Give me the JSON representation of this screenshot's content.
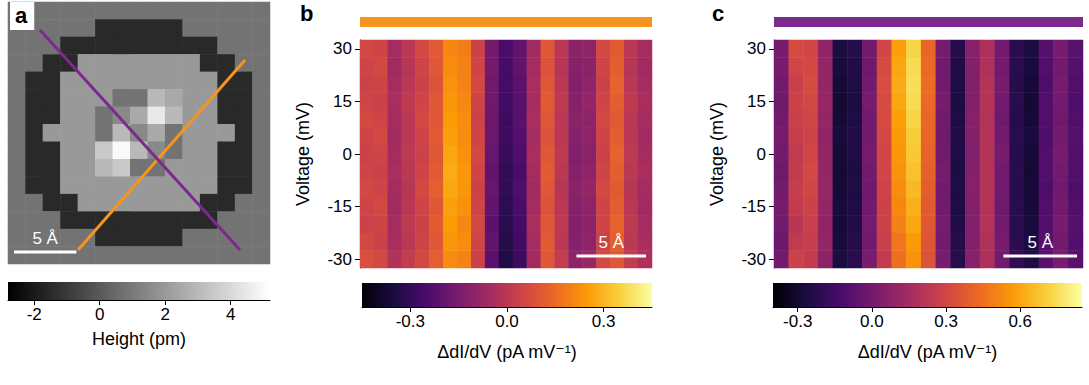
{
  "chart_data": [
    {
      "type": "heatmap",
      "panel_label": "a",
      "color": "gray",
      "tick_labels": false,
      "xlim": [
        0,
        21
      ],
      "scale_bar": {
        "length": 5,
        "label": "5 Å"
      },
      "colorbar": {
        "title": "Height (pm)",
        "range": [
          -2.8,
          5.2
        ],
        "ticks": [
          -2,
          0,
          2,
          4
        ]
      },
      "cells": [
        [
          0.8,
          0.8,
          0.8,
          0.8,
          0.8,
          0.8,
          0.8,
          0.8,
          0.8,
          0.8,
          0.8,
          0.8,
          0.8,
          0.8,
          0.8
        ],
        [
          0.8,
          0.8,
          0.8,
          0.8,
          0.8,
          -1.5,
          -1.5,
          -1.5,
          -1.5,
          -1.5,
          0.8,
          0.8,
          0.8,
          0.8,
          0.8
        ],
        [
          0.8,
          0.8,
          0.8,
          -1.5,
          -1.5,
          -1.5,
          -1.5,
          -1.5,
          -1.5,
          -1.5,
          -1.5,
          -1.5,
          0.8,
          0.8,
          0.8
        ],
        [
          0.8,
          0.8,
          -1.5,
          -1.5,
          2,
          2,
          2,
          2,
          2,
          2,
          2,
          -1.5,
          -1.5,
          0.8,
          0.8
        ],
        [
          0.8,
          -1.5,
          -1.5,
          2,
          2,
          2,
          2,
          2,
          2,
          2,
          2,
          2,
          -1.5,
          -1.5,
          0.8
        ],
        [
          0.8,
          -1.5,
          -1.5,
          2,
          2,
          2,
          0.8,
          0.8,
          3,
          2.5,
          2,
          2,
          -1.5,
          -1.5,
          0.8
        ],
        [
          0.8,
          -1.5,
          -1.5,
          2,
          2,
          0.8,
          1.5,
          2.5,
          4.5,
          3,
          2,
          2,
          -1.5,
          -1.5,
          0.8
        ],
        [
          0.8,
          -1.5,
          2,
          2,
          2,
          0.8,
          3,
          1.5,
          2.5,
          0.8,
          2,
          2,
          2,
          -1.5,
          0.8
        ],
        [
          0.8,
          -1.5,
          -1.5,
          2,
          2,
          3.5,
          5,
          3,
          1.5,
          0.8,
          2,
          2,
          -1.5,
          -1.5,
          0.8
        ],
        [
          0.8,
          -1.5,
          -1.5,
          2,
          2,
          3,
          3.5,
          0.8,
          0.8,
          2,
          2,
          2,
          -1.5,
          -1.5,
          0.8
        ],
        [
          0.8,
          -1.5,
          -1.5,
          2,
          2,
          2,
          2,
          2,
          2,
          2,
          2,
          2,
          -1.5,
          -1.5,
          0.8
        ],
        [
          0.8,
          0.8,
          -1.5,
          -1.5,
          2,
          2,
          2,
          2,
          2,
          2,
          2,
          -1.5,
          -1.5,
          0.8,
          0.8
        ],
        [
          0.8,
          0.8,
          0.8,
          -1.5,
          -1.5,
          -1.5,
          -1.5,
          -1.5,
          -1.5,
          -1.5,
          -1.5,
          -1.5,
          0.8,
          0.8,
          0.8
        ],
        [
          0.8,
          0.8,
          0.8,
          0.8,
          0.8,
          -1.5,
          -1.5,
          -1.5,
          -1.5,
          -1.5,
          0.8,
          0.8,
          0.8,
          0.8,
          0.8
        ],
        [
          0.8,
          0.8,
          0.8,
          0.8,
          0.8,
          0.8,
          0.8,
          0.8,
          0.8,
          0.8,
          0.8,
          0.8,
          0.8,
          0.8,
          0.8
        ]
      ]
    },
    {
      "type": "heatmap",
      "panel_label": "b",
      "color": "inferno",
      "tick_labels": "y",
      "x": [
        0,
        1,
        2,
        3,
        4,
        5,
        6,
        7,
        8,
        9,
        10,
        11,
        12,
        13,
        14,
        15,
        16,
        17,
        18,
        19,
        20
      ],
      "xlim": [
        -0.5,
        20.5
      ],
      "y": [
        -30,
        -25,
        -20,
        -15,
        -10,
        -5,
        0,
        5,
        10,
        15,
        20,
        25,
        30
      ],
      "ylim": [
        -32.5,
        32.5
      ],
      "yticks": [
        -30,
        -15,
        0,
        15,
        30
      ],
      "y_label": "Voltage (mV)",
      "scale_bar": {
        "length": 5,
        "label": "5 Å"
      },
      "colorbar": {
        "title": "ΔdI/dV (pA mV⁻¹)",
        "range": [
          -0.45,
          0.45
        ],
        "ticks": [
          -0.3,
          {
            "value": 0,
            "label": "0.0"
          },
          0.3
        ]
      },
      "cells": [
        [
          0.08,
          0.06,
          -0.02,
          0.02,
          0.06,
          0.12,
          0.22,
          0.2,
          0.04,
          -0.22,
          -0.34,
          -0.28,
          -0.06,
          0.1,
          0.02,
          -0.1,
          -0.08,
          0.06,
          0.1,
          0.02,
          -0.03
        ],
        [
          0.06,
          0.04,
          -0.04,
          0.0,
          0.05,
          0.1,
          0.24,
          0.22,
          0.05,
          -0.2,
          -0.33,
          -0.27,
          -0.05,
          0.11,
          0.0,
          -0.12,
          -0.1,
          0.04,
          0.12,
          0.0,
          -0.04
        ],
        [
          0.04,
          0.05,
          -0.05,
          0.01,
          0.04,
          0.11,
          0.25,
          0.21,
          0.06,
          -0.21,
          -0.32,
          -0.26,
          -0.04,
          0.1,
          0.01,
          -0.13,
          -0.11,
          0.05,
          0.13,
          0.01,
          -0.05
        ],
        [
          0.05,
          0.06,
          -0.06,
          0.0,
          0.05,
          0.1,
          0.26,
          0.23,
          0.05,
          -0.2,
          -0.31,
          -0.25,
          -0.05,
          0.09,
          0.0,
          -0.12,
          -0.1,
          0.05,
          0.12,
          0.0,
          -0.06
        ],
        [
          0.06,
          0.05,
          -0.05,
          -0.01,
          0.06,
          0.12,
          0.27,
          0.24,
          0.04,
          -0.19,
          -0.3,
          -0.24,
          -0.06,
          0.1,
          -0.01,
          -0.11,
          -0.09,
          0.06,
          0.11,
          -0.01,
          -0.05
        ],
        [
          0.05,
          0.04,
          -0.04,
          0.0,
          0.05,
          0.11,
          0.28,
          0.24,
          0.05,
          -0.2,
          -0.3,
          -0.25,
          -0.05,
          0.11,
          0.0,
          -0.12,
          -0.1,
          0.05,
          0.12,
          0.0,
          -0.04
        ],
        [
          0.04,
          0.05,
          -0.05,
          0.01,
          0.04,
          0.1,
          0.27,
          0.23,
          0.06,
          -0.19,
          -0.29,
          -0.24,
          -0.04,
          0.1,
          0.01,
          -0.13,
          -0.11,
          0.04,
          0.13,
          0.01,
          -0.05
        ],
        [
          0.05,
          0.06,
          -0.06,
          0.0,
          0.05,
          0.11,
          0.26,
          0.22,
          0.05,
          -0.18,
          -0.28,
          -0.23,
          -0.05,
          0.09,
          0.0,
          -0.12,
          -0.1,
          0.05,
          0.12,
          0.0,
          -0.06
        ],
        [
          0.06,
          0.05,
          -0.05,
          0.0,
          0.06,
          0.1,
          0.25,
          0.22,
          0.04,
          -0.18,
          -0.28,
          -0.22,
          -0.04,
          0.1,
          0.0,
          -0.11,
          -0.1,
          0.06,
          0.11,
          0.0,
          -0.05
        ],
        [
          0.05,
          0.04,
          -0.04,
          0.01,
          0.05,
          0.1,
          0.24,
          0.21,
          0.05,
          -0.17,
          -0.27,
          -0.22,
          -0.05,
          0.11,
          0.01,
          -0.12,
          -0.09,
          0.05,
          0.12,
          0.01,
          -0.04
        ],
        [
          0.04,
          0.05,
          -0.05,
          0.0,
          0.04,
          0.09,
          0.23,
          0.2,
          0.06,
          -0.17,
          -0.26,
          -0.21,
          -0.04,
          0.1,
          0.0,
          -0.13,
          -0.1,
          0.04,
          0.13,
          0.0,
          -0.05
        ],
        [
          0.05,
          0.06,
          -0.06,
          -0.01,
          0.05,
          0.1,
          0.22,
          0.2,
          0.05,
          -0.16,
          -0.26,
          -0.2,
          -0.05,
          0.09,
          -0.01,
          -0.12,
          -0.11,
          0.05,
          0.12,
          -0.01,
          -0.06
        ],
        [
          0.06,
          0.05,
          -0.05,
          0.0,
          0.06,
          0.11,
          0.21,
          0.19,
          0.04,
          -0.16,
          -0.25,
          -0.2,
          -0.06,
          0.1,
          0.0,
          -0.11,
          -0.1,
          0.06,
          0.11,
          0.0,
          -0.05
        ]
      ]
    },
    {
      "type": "heatmap",
      "panel_label": "c",
      "color": "inferno",
      "tick_labels": "y",
      "x": [
        0,
        1,
        2,
        3,
        4,
        5,
        6,
        7,
        8,
        9,
        10,
        11,
        12,
        13,
        14,
        15,
        16,
        17,
        18,
        19,
        20
      ],
      "xlim": [
        -0.5,
        20.5
      ],
      "y": [
        -30,
        -25,
        -20,
        -15,
        -10,
        -5,
        0,
        5,
        10,
        15,
        20,
        25,
        30
      ],
      "ylim": [
        -32.5,
        32.5
      ],
      "yticks": [
        -30,
        -15,
        0,
        15,
        30
      ],
      "y_label": "Voltage (mV)",
      "scale_bar": {
        "length": 5,
        "label": "5 Å"
      },
      "colorbar": {
        "title": "ΔdI/dV (pA mV⁻¹)",
        "range": [
          -0.4,
          0.85
        ],
        "ticks": [
          -0.3,
          {
            "value": 0,
            "label": "0.0"
          },
          0.3,
          0.6
        ]
      },
      "cells": [
        [
          0.0,
          0.28,
          0.25,
          0.08,
          -0.26,
          -0.22,
          0.02,
          0.25,
          0.45,
          0.55,
          0.35,
          0.02,
          -0.22,
          0.06,
          0.18,
          0.0,
          -0.2,
          -0.25,
          -0.08,
          0.02,
          -0.08
        ],
        [
          -0.02,
          0.24,
          0.26,
          0.1,
          -0.27,
          -0.23,
          0.0,
          0.27,
          0.47,
          0.57,
          0.36,
          0.0,
          -0.23,
          0.05,
          0.19,
          0.01,
          -0.21,
          -0.26,
          -0.09,
          0.0,
          -0.1
        ],
        [
          0.0,
          0.22,
          0.27,
          0.09,
          -0.28,
          -0.24,
          0.01,
          0.28,
          0.5,
          0.6,
          0.37,
          0.01,
          -0.24,
          0.04,
          0.2,
          0.0,
          -0.22,
          -0.27,
          -0.1,
          0.01,
          -0.09
        ],
        [
          0.01,
          0.25,
          0.28,
          0.1,
          -0.27,
          -0.25,
          0.0,
          0.28,
          0.52,
          0.62,
          0.38,
          0.0,
          -0.25,
          0.05,
          0.2,
          -0.01,
          -0.22,
          -0.28,
          -0.1,
          0.0,
          -0.1
        ],
        [
          0.0,
          0.26,
          0.3,
          0.11,
          -0.28,
          -0.25,
          -0.01,
          0.29,
          0.53,
          0.65,
          0.39,
          0.0,
          -0.25,
          0.06,
          0.21,
          0.0,
          -0.23,
          -0.28,
          -0.11,
          -0.01,
          -0.11
        ],
        [
          -0.01,
          0.25,
          0.31,
          0.1,
          -0.29,
          -0.26,
          0.0,
          0.3,
          0.55,
          0.67,
          0.4,
          0.01,
          -0.26,
          0.05,
          0.2,
          0.0,
          -0.22,
          -0.29,
          -0.1,
          0.0,
          -0.1
        ],
        [
          0.0,
          0.24,
          0.3,
          0.1,
          -0.28,
          -0.25,
          0.01,
          0.3,
          0.56,
          0.69,
          0.41,
          0.0,
          -0.25,
          0.04,
          0.21,
          0.01,
          -0.23,
          -0.28,
          -0.1,
          0.01,
          -0.1
        ],
        [
          0.01,
          0.26,
          0.29,
          0.09,
          -0.27,
          -0.24,
          0.0,
          0.31,
          0.57,
          0.7,
          0.42,
          -0.01,
          -0.24,
          0.05,
          0.2,
          0.0,
          -0.22,
          -0.27,
          -0.11,
          0.0,
          -0.09
        ],
        [
          0.0,
          0.27,
          0.3,
          0.1,
          -0.28,
          -0.25,
          0.0,
          0.32,
          0.58,
          0.72,
          0.42,
          0.0,
          -0.25,
          0.06,
          0.2,
          -0.01,
          -0.23,
          -0.28,
          -0.1,
          -0.01,
          -0.1
        ],
        [
          -0.01,
          0.28,
          0.31,
          0.11,
          -0.29,
          -0.26,
          0.01,
          0.32,
          0.6,
          0.74,
          0.43,
          0.01,
          -0.26,
          0.05,
          0.21,
          0.0,
          -0.22,
          -0.29,
          -0.1,
          0.0,
          -0.11
        ],
        [
          0.0,
          0.27,
          0.32,
          0.1,
          -0.28,
          -0.25,
          0.0,
          0.33,
          0.61,
          0.75,
          0.44,
          0.0,
          -0.25,
          0.04,
          0.2,
          0.01,
          -0.23,
          -0.28,
          -0.11,
          0.01,
          -0.1
        ],
        [
          0.01,
          0.3,
          0.31,
          0.1,
          -0.27,
          -0.24,
          -0.01,
          0.32,
          0.6,
          0.74,
          0.43,
          0.0,
          -0.24,
          0.05,
          0.19,
          0.0,
          -0.22,
          -0.27,
          -0.1,
          0.0,
          -0.09
        ],
        [
          0.02,
          0.32,
          0.3,
          0.09,
          -0.26,
          -0.23,
          0.0,
          0.3,
          0.58,
          0.72,
          0.42,
          0.01,
          -0.23,
          0.06,
          0.18,
          0.0,
          -0.21,
          -0.26,
          -0.09,
          0.01,
          -0.08
        ]
      ]
    }
  ]
}
